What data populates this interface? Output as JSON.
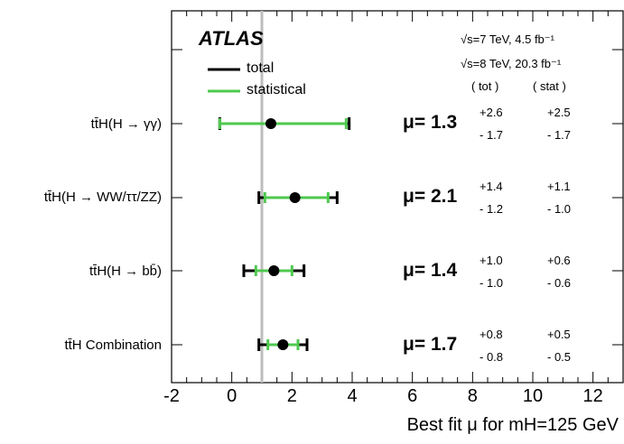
{
  "chart_data": {
    "type": "errorbar",
    "brand": "ATLAS",
    "energy_lines": [
      "√s=7 TeV, 4.5  fb⁻¹",
      "√s=8 TeV, 20.3 fb⁻¹"
    ],
    "unc_headers": {
      "tot": "( tot )",
      "stat": "( stat )"
    },
    "legend": [
      {
        "label": "total",
        "color": "#000000"
      },
      {
        "label": "statistical",
        "color": "#4ec94e"
      }
    ],
    "xlabel": "Best fit μ for mH=125 GeV",
    "xlim": [
      -2,
      13
    ],
    "xticks": [
      "-2",
      "0",
      "2",
      "4",
      "6",
      "8",
      "10",
      "12"
    ],
    "sm_reference": 1.0,
    "categories": [
      {
        "label": "tt̄H(H → γγ)",
        "mu_text": "μ= 1.3",
        "mu": 1.3,
        "tot_up": 2.6,
        "tot_down": 1.7,
        "stat_up": 2.5,
        "stat_down": 1.7,
        "tot_up_text": "+2.6",
        "tot_down_text": "- 1.7",
        "stat_up_text": "+2.5",
        "stat_down_text": "- 1.7"
      },
      {
        "label": "tt̄H(H → WW/ττ/ZZ)",
        "mu_text": "μ= 2.1",
        "mu": 2.1,
        "tot_up": 1.4,
        "tot_down": 1.2,
        "stat_up": 1.1,
        "stat_down": 1.0,
        "tot_up_text": "+1.4",
        "tot_down_text": "- 1.2",
        "stat_up_text": "+1.1",
        "stat_down_text": "- 1.0"
      },
      {
        "label": "tt̄H(H → bb̄)",
        "mu_text": "μ= 1.4",
        "mu": 1.4,
        "tot_up": 1.0,
        "tot_down": 1.0,
        "stat_up": 0.6,
        "stat_down": 0.6,
        "tot_up_text": "+1.0",
        "tot_down_text": "- 1.0",
        "stat_up_text": "+0.6",
        "stat_down_text": "- 0.6"
      },
      {
        "label": "tt̄H Combination",
        "mu_text": "μ= 1.7",
        "mu": 1.7,
        "tot_up": 0.8,
        "tot_down": 0.8,
        "stat_up": 0.5,
        "stat_down": 0.5,
        "tot_up_text": "+0.8",
        "tot_down_text": "- 0.8",
        "stat_up_text": "+0.5",
        "stat_down_text": "- 0.5"
      }
    ]
  }
}
